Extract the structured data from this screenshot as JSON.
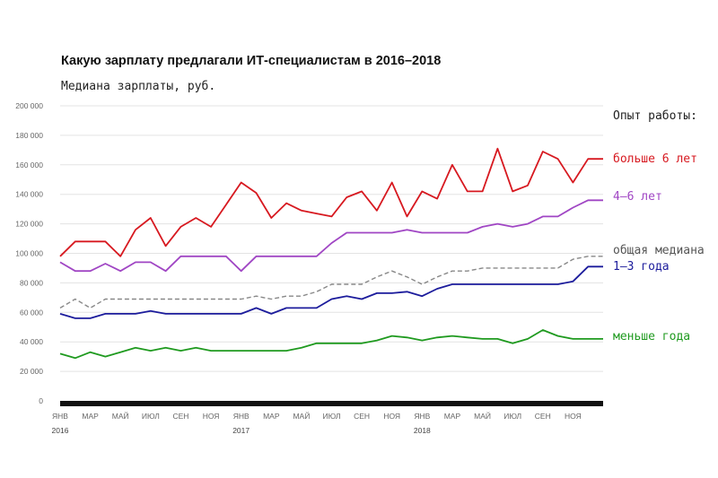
{
  "chart_data": {
    "type": "line",
    "title": "Какую зарплату предлагали ИТ-специалистам в 2016–2018",
    "subtitle": "Медиана зарплаты, руб.",
    "xlabel": "",
    "ylabel": "",
    "ylim": [
      0,
      200000
    ],
    "yticks": [
      "200 000",
      "180 000",
      "160 000",
      "140 000",
      "120 000",
      "100 000",
      "80 000",
      "60 000",
      "40 000",
      "20 000",
      "0"
    ],
    "ytick_values": [
      200000,
      180000,
      160000,
      140000,
      120000,
      100000,
      80000,
      60000,
      40000,
      20000,
      0
    ],
    "grid": true,
    "legend_position": "right",
    "legend_title": "Опыт работы:",
    "x": [
      "2016-01",
      "2016-02",
      "2016-03",
      "2016-04",
      "2016-05",
      "2016-06",
      "2016-07",
      "2016-08",
      "2016-09",
      "2016-10",
      "2016-11",
      "2016-12",
      "2017-01",
      "2017-02",
      "2017-03",
      "2017-04",
      "2017-05",
      "2017-06",
      "2017-07",
      "2017-08",
      "2017-09",
      "2017-10",
      "2017-11",
      "2017-12",
      "2018-01",
      "2018-02",
      "2018-03",
      "2018-04",
      "2018-05",
      "2018-06",
      "2018-07",
      "2018-08",
      "2018-09",
      "2018-10",
      "2018-11",
      "2018-12",
      "2019-01"
    ],
    "x_tick_labels": [
      "ЯНВ",
      "МАР",
      "МАЙ",
      "ИЮЛ",
      "СЕН",
      "НОЯ",
      "ЯНВ",
      "МАР",
      "МАЙ",
      "ИЮЛ",
      "СЕН",
      "НОЯ",
      "ЯНВ",
      "МАР",
      "МАЙ",
      "ИЮЛ",
      "СЕН",
      "НОЯ"
    ],
    "x_tick_indices": [
      0,
      2,
      4,
      6,
      8,
      10,
      12,
      14,
      16,
      18,
      20,
      22,
      24,
      26,
      28,
      30,
      32,
      34
    ],
    "year_labels": [
      "2016",
      "2017",
      "2018"
    ],
    "year_indices": [
      0,
      12,
      24
    ],
    "series": [
      {
        "name": "больше 6 лет",
        "color": "#d71920",
        "dashed": false,
        "values": [
          98000,
          108000,
          108000,
          108000,
          98000,
          116000,
          124000,
          105000,
          118000,
          124000,
          118000,
          133000,
          148000,
          141000,
          124000,
          134000,
          129000,
          127000,
          125000,
          138000,
          142000,
          129000,
          148000,
          125000,
          142000,
          137000,
          160000,
          142000,
          142000,
          171000,
          142000,
          146000,
          169000,
          164000,
          148000,
          164000,
          164000
        ]
      },
      {
        "name": "4–6 лет",
        "color": "#a046c4",
        "dashed": false,
        "values": [
          94000,
          88000,
          88000,
          93000,
          88000,
          94000,
          94000,
          88000,
          98000,
          98000,
          98000,
          98000,
          88000,
          98000,
          98000,
          98000,
          98000,
          98000,
          107000,
          114000,
          114000,
          114000,
          114000,
          116000,
          114000,
          114000,
          114000,
          114000,
          118000,
          120000,
          118000,
          120000,
          125000,
          125000,
          131000,
          136000,
          136000
        ]
      },
      {
        "name": "общая медиана",
        "color": "#888888",
        "dashed": true,
        "values": [
          63000,
          69000,
          63000,
          69000,
          69000,
          69000,
          69000,
          69000,
          69000,
          69000,
          69000,
          69000,
          69000,
          71000,
          69000,
          71000,
          71000,
          74000,
          79000,
          79000,
          79000,
          84000,
          88000,
          84000,
          79000,
          84000,
          88000,
          88000,
          90000,
          90000,
          90000,
          90000,
          90000,
          90000,
          96000,
          98000,
          98000
        ]
      },
      {
        "name": "1–3 года",
        "color": "#1c1c9c",
        "dashed": false,
        "values": [
          59000,
          56000,
          56000,
          59000,
          59000,
          59000,
          61000,
          59000,
          59000,
          59000,
          59000,
          59000,
          59000,
          63000,
          59000,
          63000,
          63000,
          63000,
          69000,
          71000,
          69000,
          73000,
          73000,
          74000,
          71000,
          76000,
          79000,
          79000,
          79000,
          79000,
          79000,
          79000,
          79000,
          79000,
          81000,
          91000,
          91000
        ]
      },
      {
        "name": "меньше года",
        "color": "#1f9a1f",
        "dashed": false,
        "values": [
          32000,
          29000,
          33000,
          30000,
          33000,
          36000,
          34000,
          36000,
          34000,
          36000,
          34000,
          34000,
          34000,
          34000,
          34000,
          34000,
          36000,
          39000,
          39000,
          39000,
          39000,
          41000,
          44000,
          43000,
          41000,
          43000,
          44000,
          43000,
          42000,
          42000,
          39000,
          42000,
          48000,
          44000,
          42000,
          42000,
          42000
        ]
      }
    ],
    "legend_entries": [
      {
        "label": "больше 6 лет",
        "color": "#d71920"
      },
      {
        "label": "4–6 лет",
        "color": "#a046c4"
      },
      {
        "label": "общая медиана",
        "color": "#555555"
      },
      {
        "label": "1–3 года",
        "color": "#1c1c9c"
      },
      {
        "label": "меньше года",
        "color": "#1f9a1f"
      }
    ]
  }
}
